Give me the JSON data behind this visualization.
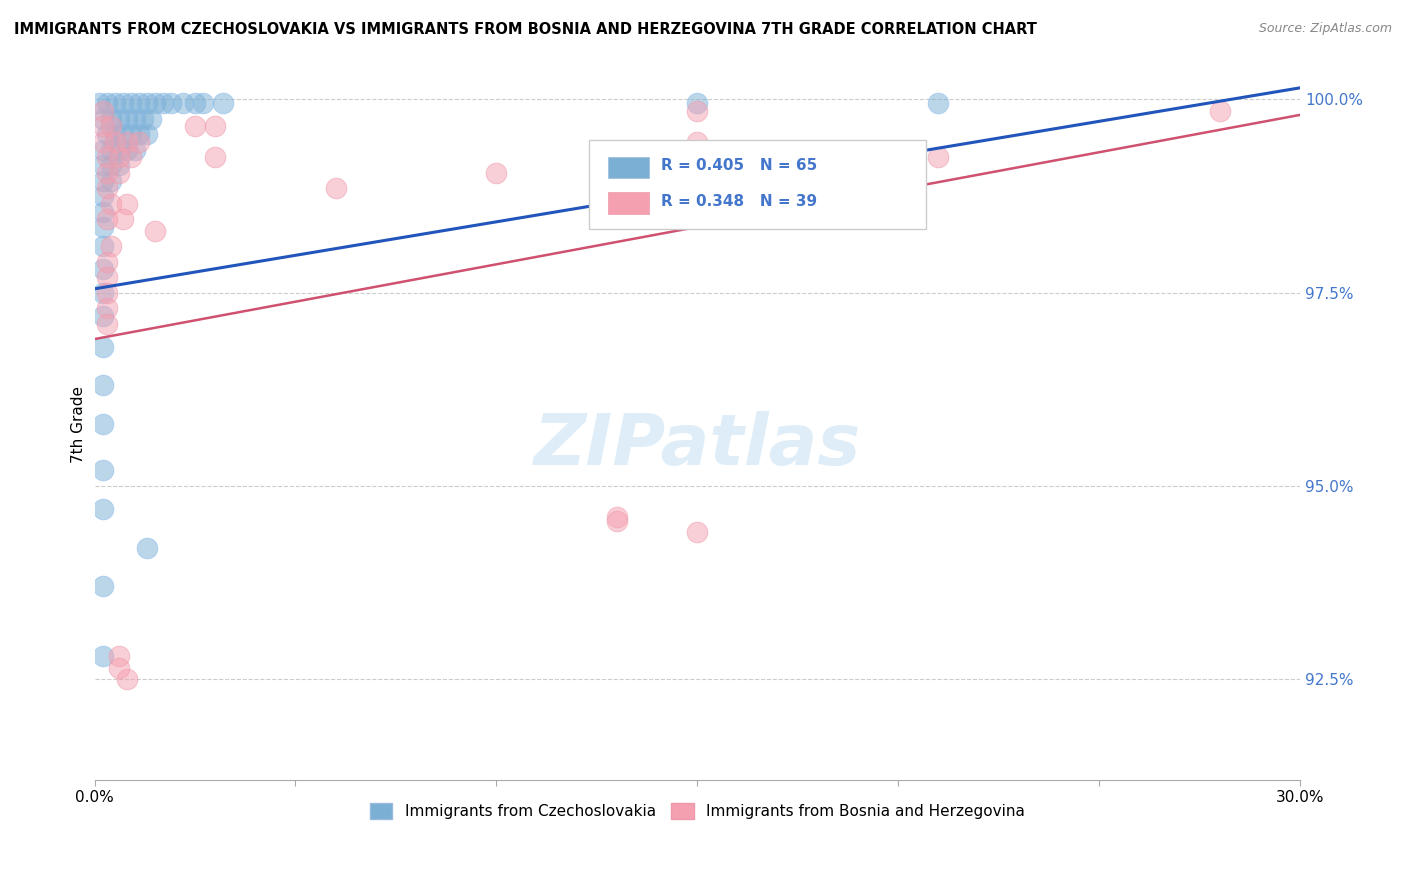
{
  "title": "IMMIGRANTS FROM CZECHOSLOVAKIA VS IMMIGRANTS FROM BOSNIA AND HERZEGOVINA 7TH GRADE CORRELATION CHART",
  "source": "Source: ZipAtlas.com",
  "ylabel": "7th Grade",
  "xlim": [
    0.0,
    0.3
  ],
  "ylim": [
    0.912,
    1.004
  ],
  "yticks": [
    0.925,
    0.95,
    0.975,
    1.0
  ],
  "ytick_labels": [
    "92.5%",
    "95.0%",
    "97.5%",
    "100.0%"
  ],
  "xticks": [
    0.0,
    0.05,
    0.1,
    0.15,
    0.2,
    0.25,
    0.3
  ],
  "xtick_labels": [
    "0.0%",
    "",
    "",
    "",
    "",
    "",
    "30.0%"
  ],
  "blue_color": "#7BAFD4",
  "pink_color": "#F4A0B0",
  "blue_line_color": "#2255BB",
  "pink_line_color": "#D05070",
  "blue_line": {
    "x0": 0.0,
    "y0": 0.9755,
    "x1": 0.3,
    "y1": 1.0015
  },
  "pink_line": {
    "x0": 0.0,
    "y0": 0.969,
    "x1": 0.3,
    "y1": 0.998
  },
  "blue_points": [
    [
      0.001,
      0.9995
    ],
    [
      0.003,
      0.9995
    ],
    [
      0.005,
      0.9995
    ],
    [
      0.007,
      0.9995
    ],
    [
      0.009,
      0.9995
    ],
    [
      0.011,
      0.9995
    ],
    [
      0.013,
      0.9995
    ],
    [
      0.015,
      0.9995
    ],
    [
      0.017,
      0.9995
    ],
    [
      0.019,
      0.9995
    ],
    [
      0.022,
      0.9995
    ],
    [
      0.025,
      0.9995
    ],
    [
      0.027,
      0.9995
    ],
    [
      0.032,
      0.9995
    ],
    [
      0.15,
      0.9995
    ],
    [
      0.21,
      0.9995
    ],
    [
      0.002,
      0.9975
    ],
    [
      0.004,
      0.9975
    ],
    [
      0.006,
      0.9975
    ],
    [
      0.008,
      0.9975
    ],
    [
      0.01,
      0.9975
    ],
    [
      0.012,
      0.9975
    ],
    [
      0.014,
      0.9975
    ],
    [
      0.003,
      0.9955
    ],
    [
      0.005,
      0.9955
    ],
    [
      0.007,
      0.9955
    ],
    [
      0.009,
      0.9955
    ],
    [
      0.011,
      0.9955
    ],
    [
      0.013,
      0.9955
    ],
    [
      0.002,
      0.9935
    ],
    [
      0.004,
      0.9935
    ],
    [
      0.006,
      0.9935
    ],
    [
      0.008,
      0.9935
    ],
    [
      0.01,
      0.9935
    ],
    [
      0.002,
      0.9915
    ],
    [
      0.004,
      0.9915
    ],
    [
      0.006,
      0.9915
    ],
    [
      0.002,
      0.9895
    ],
    [
      0.004,
      0.9895
    ],
    [
      0.002,
      0.9875
    ],
    [
      0.002,
      0.9855
    ],
    [
      0.002,
      0.9835
    ],
    [
      0.002,
      0.981
    ],
    [
      0.002,
      0.978
    ],
    [
      0.002,
      0.975
    ],
    [
      0.002,
      0.972
    ],
    [
      0.002,
      0.968
    ],
    [
      0.002,
      0.963
    ],
    [
      0.002,
      0.958
    ],
    [
      0.002,
      0.952
    ],
    [
      0.002,
      0.947
    ],
    [
      0.013,
      0.942
    ],
    [
      0.002,
      0.937
    ],
    [
      0.002,
      0.928
    ]
  ],
  "pink_points": [
    [
      0.002,
      0.9985
    ],
    [
      0.15,
      0.9985
    ],
    [
      0.28,
      0.9985
    ],
    [
      0.002,
      0.9965
    ],
    [
      0.004,
      0.9965
    ],
    [
      0.025,
      0.9965
    ],
    [
      0.03,
      0.9965
    ],
    [
      0.002,
      0.9945
    ],
    [
      0.005,
      0.9945
    ],
    [
      0.008,
      0.9945
    ],
    [
      0.011,
      0.9945
    ],
    [
      0.15,
      0.9945
    ],
    [
      0.003,
      0.9925
    ],
    [
      0.006,
      0.9925
    ],
    [
      0.009,
      0.9925
    ],
    [
      0.03,
      0.9925
    ],
    [
      0.21,
      0.9925
    ],
    [
      0.003,
      0.9905
    ],
    [
      0.006,
      0.9905
    ],
    [
      0.1,
      0.9905
    ],
    [
      0.003,
      0.9885
    ],
    [
      0.06,
      0.9885
    ],
    [
      0.004,
      0.9865
    ],
    [
      0.008,
      0.9865
    ],
    [
      0.003,
      0.9845
    ],
    [
      0.007,
      0.9845
    ],
    [
      0.015,
      0.983
    ],
    [
      0.004,
      0.981
    ],
    [
      0.003,
      0.979
    ],
    [
      0.003,
      0.977
    ],
    [
      0.003,
      0.975
    ],
    [
      0.003,
      0.973
    ],
    [
      0.003,
      0.971
    ],
    [
      0.13,
      0.946
    ],
    [
      0.15,
      0.944
    ],
    [
      0.006,
      0.928
    ],
    [
      0.008,
      0.925
    ],
    [
      0.13,
      0.9455
    ],
    [
      0.006,
      0.9265
    ]
  ]
}
